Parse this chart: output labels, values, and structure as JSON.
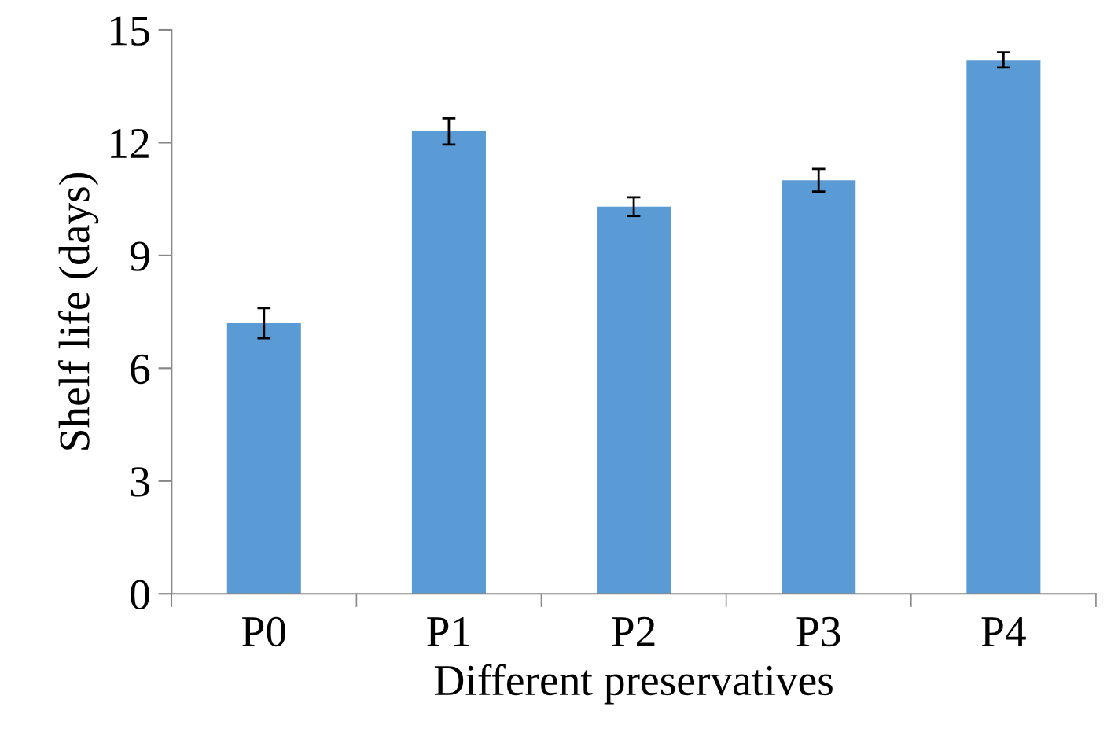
{
  "chart_data": {
    "type": "bar",
    "xlabel": "Different preservatives",
    "ylabel": "Shelf life (days)",
    "categories": [
      "P0",
      "P1",
      "P2",
      "P3",
      "P4"
    ],
    "values": [
      7.2,
      12.3,
      10.3,
      11.0,
      14.2
    ],
    "errors": [
      0.4,
      0.35,
      0.25,
      0.3,
      0.2
    ],
    "color": "#5b9bd5",
    "ylim": [
      0,
      15
    ],
    "yticks": [
      0,
      3,
      6,
      9,
      12,
      15
    ],
    "grid": false,
    "legend": false
  }
}
